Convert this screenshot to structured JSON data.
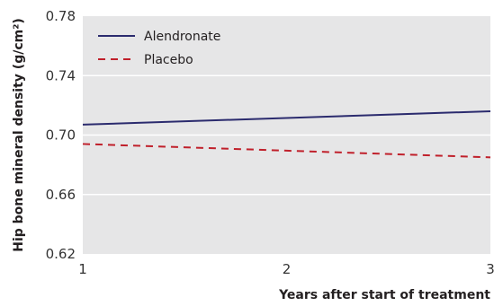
{
  "chart_data": {
    "type": "line",
    "xlabel": "Years after start of treatment",
    "ylabel": "Hip bone mineral density (g/cm²)",
    "xlim": [
      1,
      3
    ],
    "ylim": [
      0.62,
      0.78
    ],
    "x_ticks": [
      1,
      2,
      3
    ],
    "x_tick_labels": [
      "1",
      "2",
      "3"
    ],
    "y_ticks": [
      0.62,
      0.66,
      0.7,
      0.74,
      0.78
    ],
    "y_tick_labels": [
      "0.62",
      "0.66",
      "0.70",
      "0.74",
      "0.78"
    ],
    "grid": "horizontal",
    "legend_position": "top-left",
    "background": "#e6e6e7",
    "gridline_color": "#ffffff",
    "series": [
      {
        "name": "Alendronate",
        "color": "#2b2b6e",
        "style": "solid",
        "x": [
          1,
          3
        ],
        "y": [
          0.707,
          0.716
        ]
      },
      {
        "name": "Placebo",
        "color": "#c0202b",
        "style": "dashed",
        "x": [
          1,
          3
        ],
        "y": [
          0.694,
          0.685
        ]
      }
    ]
  }
}
